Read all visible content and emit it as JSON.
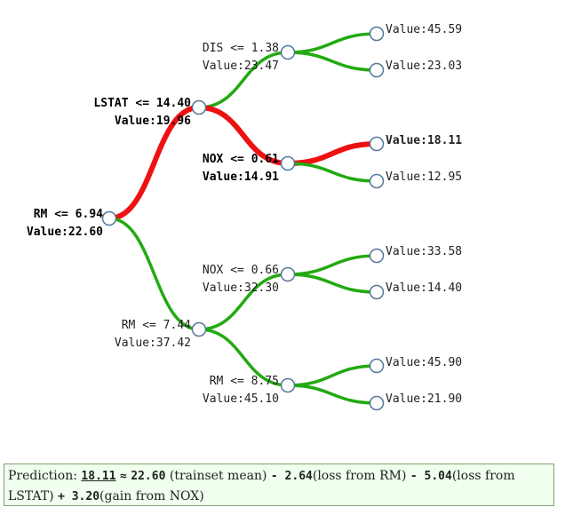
{
  "nodes": {
    "root": {
      "cond": "RM <= 6.94",
      "value": "Value:22.60"
    },
    "n_lstat": {
      "cond": "LSTAT <= 14.40",
      "value": "Value:19.96"
    },
    "n_rm744": {
      "cond": "RM <= 7.44",
      "value": "Value:37.42"
    },
    "n_dis": {
      "cond": "DIS <= 1.38",
      "value": "Value:23.47"
    },
    "n_nox061": {
      "cond": "NOX <= 0.61",
      "value": "Value:14.91"
    },
    "n_nox066": {
      "cond": "NOX <= 0.66",
      "value": "Value:32.30"
    },
    "n_rm875": {
      "cond": "RM <= 8.75",
      "value": "Value:45.10"
    }
  },
  "leaves": {
    "l1": "Value:45.59",
    "l2": "Value:23.03",
    "l3": "Value:18.11",
    "l4": "Value:12.95",
    "l5": "Value:33.58",
    "l6": "Value:14.40",
    "l7": "Value:45.90",
    "l8": "Value:21.90"
  },
  "prediction": {
    "label": "Prediction:",
    "value": "18.11",
    "approx": "≈",
    "mean": "22.60",
    "mean_label": "(trainset mean)",
    "t1_sign": "- 2.64",
    "t1_label": "(loss from RM)",
    "t2_sign": "- 5.04",
    "t2_label": "(loss from LSTAT)",
    "t3_sign": "+ 3.20",
    "t3_label": "(gain from NOX)"
  },
  "colors": {
    "path": "#ee1111",
    "branch": "#22aa11",
    "node_stroke": "#557799"
  }
}
